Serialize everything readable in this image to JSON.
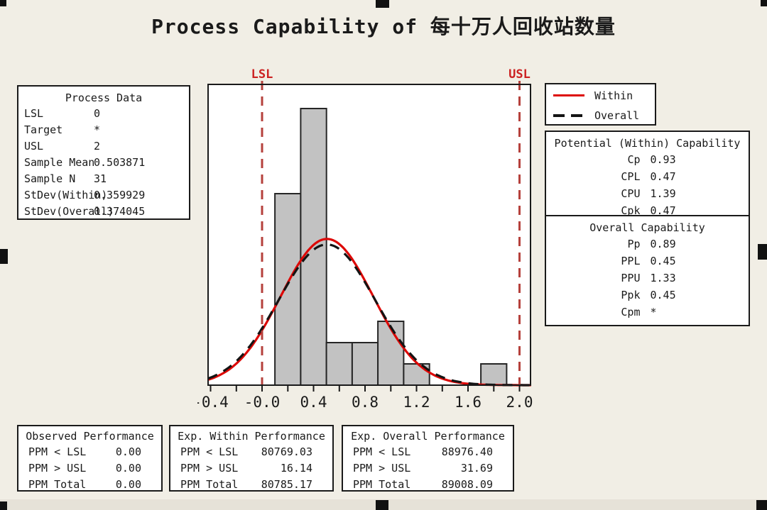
{
  "title": "Process Capability of 每十万人回收站数量",
  "colors": {
    "background": "#f1eee5",
    "bar_fill": "#c2c2c2",
    "bar_border": "#262626",
    "within_curve": "#dd0806",
    "overall_curve": "#141414",
    "limit_line": "#b5413c",
    "limit_label": "#cc2222"
  },
  "process_data": {
    "title": "Process Data",
    "rows": [
      {
        "label": "LSL",
        "value": "0"
      },
      {
        "label": "Target",
        "value": "*"
      },
      {
        "label": "USL",
        "value": "2"
      },
      {
        "label": "Sample Mean",
        "value": "0.503871"
      },
      {
        "label": "Sample N",
        "value": "31"
      },
      {
        "label": "StDev(Within)",
        "value": "0.359929"
      },
      {
        "label": "StDev(Overall)",
        "value": "0.374045"
      }
    ]
  },
  "legend": {
    "items": [
      {
        "label": "Within"
      },
      {
        "label": "Overall"
      }
    ]
  },
  "within_capability": {
    "title": "Potential (Within) Capability",
    "rows": [
      {
        "label": "Cp",
        "value": "0.93"
      },
      {
        "label": "CPL",
        "value": "0.47"
      },
      {
        "label": "CPU",
        "value": "1.39"
      },
      {
        "label": "Cpk",
        "value": "0.47"
      }
    ]
  },
  "overall_capability": {
    "title": "Overall Capability",
    "rows": [
      {
        "label": "Pp",
        "value": "0.89"
      },
      {
        "label": "PPL",
        "value": "0.45"
      },
      {
        "label": "PPU",
        "value": "1.33"
      },
      {
        "label": "Ppk",
        "value": "0.45"
      },
      {
        "label": "Cpm",
        "value": "*"
      }
    ]
  },
  "observed_performance": {
    "title": "Observed Performance",
    "rows": [
      {
        "label": "PPM < LSL",
        "value": "0.00"
      },
      {
        "label": "PPM > USL",
        "value": "0.00"
      },
      {
        "label": "PPM Total",
        "value": "0.00"
      }
    ]
  },
  "exp_within_performance": {
    "title": "Exp. Within Performance",
    "rows": [
      {
        "label": "PPM < LSL",
        "value": "80769.03"
      },
      {
        "label": "PPM > USL",
        "value": "16.14"
      },
      {
        "label": "PPM Total",
        "value": "80785.17"
      }
    ]
  },
  "exp_overall_performance": {
    "title": "Exp. Overall Performance",
    "rows": [
      {
        "label": "PPM < LSL",
        "value": "88976.40"
      },
      {
        "label": "PPM > USL",
        "value": "31.69"
      },
      {
        "label": "PPM Total",
        "value": "89008.09"
      }
    ]
  },
  "chart_data": {
    "type": "bar",
    "subtype": "capability-histogram",
    "title": "Process Capability of 每十万人回收站数量",
    "sample_n": 31,
    "bin_width": 0.2,
    "bin_centers": [
      0.2,
      0.4,
      0.6,
      0.8,
      1.0,
      1.2,
      1.4,
      1.6,
      1.8
    ],
    "counts": [
      9,
      13,
      2,
      2,
      3,
      1,
      0,
      0,
      1
    ],
    "x_tick_labels": [
      "-0.4",
      "-0.0",
      "0.4",
      "0.8",
      "1.2",
      "1.6",
      "2.0"
    ],
    "x_tick_values": [
      -0.4,
      0.0,
      0.4,
      0.8,
      1.2,
      1.6,
      2.0
    ],
    "minor_tick_step": 0.2,
    "xlim": [
      -0.42,
      2.09
    ],
    "grid": false,
    "legend_position": "top-right",
    "lsl": {
      "label": "LSL",
      "value": 0
    },
    "usl": {
      "label": "USL",
      "value": 2
    },
    "curves": [
      {
        "name": "Within",
        "mean": 0.503871,
        "stdev": 0.359929,
        "color": "#dd0806",
        "dash": null
      },
      {
        "name": "Overall",
        "mean": 0.503871,
        "stdev": 0.374045,
        "color": "#141414",
        "dash": "14 10"
      }
    ]
  }
}
